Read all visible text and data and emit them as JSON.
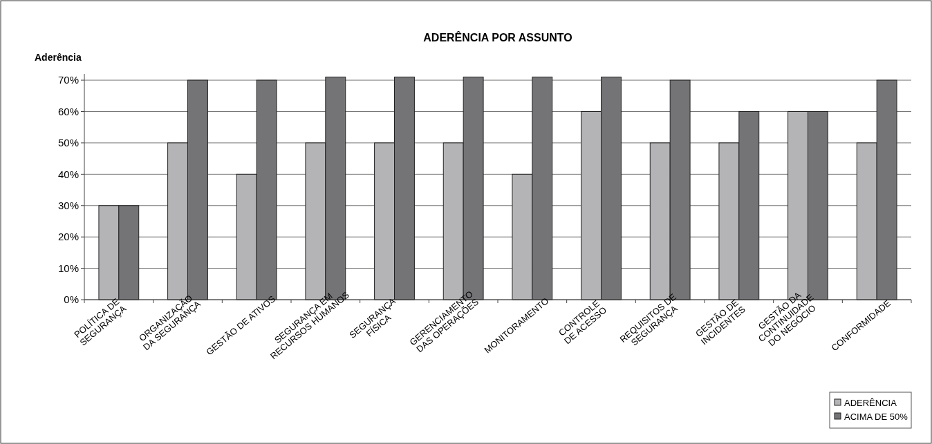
{
  "chart_data": {
    "type": "bar",
    "title": "ADERÊNCIA POR ASSUNTO",
    "ylabel": "Aderência",
    "categories": [
      "POLÍTICA DE\nSEGURANÇA",
      "ORGANIZAÇÃO\nDA SEGURANÇA",
      "GESTÃO DE ATIVOS",
      "SEGURANÇA EM\nRECURSOS HUMANOS",
      "SEGURANÇA\nFÍSICA",
      "GERENCIAMENTO\nDAS OPERAÇÕES",
      "MONITORAMENTO",
      "CONTROLE\nDE ACESSO",
      "REQUISITOS DE\nSEGURANÇA",
      "GESTÃO DE\nINCIDENTES",
      "GESTÃO DA\nCONTINUIDADE\nDO NEGÓCIO",
      "CONFORMIDADE"
    ],
    "series": [
      {
        "name": "ADERÊNCIA",
        "color": "#b4b4b6",
        "values": [
          30,
          50,
          40,
          50,
          50,
          50,
          40,
          60,
          50,
          50,
          60,
          50
        ]
      },
      {
        "name": "ACIMA DE 50%",
        "color": "#747477",
        "values": [
          30,
          70,
          70,
          71,
          71,
          71,
          71,
          71,
          70,
          60,
          60,
          70
        ]
      }
    ],
    "ylim": [
      0,
      72
    ],
    "yticks": [
      {
        "value": 0,
        "label": "0%"
      },
      {
        "value": 10,
        "label": "10%"
      },
      {
        "value": 20,
        "label": "20%"
      },
      {
        "value": 30,
        "label": "30%"
      },
      {
        "value": 40,
        "label": "40%"
      },
      {
        "value": 50,
        "label": "50%"
      },
      {
        "value": 60,
        "label": "60%"
      },
      {
        "value": 70,
        "label": "70%"
      }
    ],
    "grid": "y",
    "legend": "bottom right"
  }
}
